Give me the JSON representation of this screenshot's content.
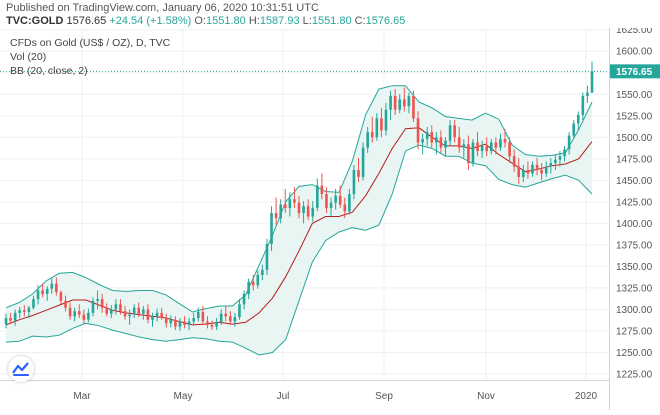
{
  "header": {
    "published": "Published on TradingView.com, January 06, 2020 10:31:51 UTC",
    "symbol": "TVC:GOLD",
    "last": "1576.65",
    "change": "+24.54 (+1.58%)",
    "o_label": "O:",
    "o": "1551.80",
    "h_label": "H:",
    "h": "1587.93",
    "l_label": "L:",
    "l": "1551.80",
    "c_label": "C:",
    "c": "1576.65"
  },
  "legend": {
    "title": "CFDs on Gold (US$ / OZ), D, TVC",
    "vol": "Vol (20)",
    "bb": "BB (20, close, 2)"
  },
  "price_badge": "1576.65",
  "colors": {
    "up": "#26a69a",
    "down": "#ef5350",
    "band": "#26a69a",
    "band_fill": "#e8f5f2",
    "basis": "#b71c1c",
    "grid": "#eef0f3"
  },
  "chart_data": {
    "type": "candlestick",
    "x_ticks": [
      "Mar",
      "May",
      "Jul",
      "Sep",
      "Nov",
      "2020"
    ],
    "y_ticks": [
      1225,
      1250,
      1275,
      1300,
      1325,
      1350,
      1375,
      1400,
      1425,
      1450,
      1475,
      1500,
      1525,
      1550,
      1575,
      1600,
      1625
    ],
    "y_range": [
      1218,
      1627
    ],
    "last_price": 1576.65,
    "basis": [
      1282,
      1288,
      1293,
      1299,
      1305,
      1311,
      1311,
      1305,
      1299,
      1296,
      1294,
      1292,
      1290,
      1286,
      1282,
      1283,
      1285,
      1283,
      1285,
      1296,
      1313,
      1338,
      1368,
      1400,
      1408,
      1408,
      1413,
      1432,
      1458,
      1487,
      1510,
      1511,
      1500,
      1490,
      1490,
      1487,
      1492,
      1480,
      1470,
      1460,
      1463,
      1467,
      1469,
      1475,
      1495
    ],
    "upper_band": [
      1302,
      1308,
      1318,
      1333,
      1342,
      1343,
      1337,
      1329,
      1322,
      1321,
      1322,
      1322,
      1317,
      1307,
      1297,
      1301,
      1304,
      1304,
      1317,
      1351,
      1386,
      1425,
      1443,
      1445,
      1437,
      1436,
      1472,
      1526,
      1556,
      1560,
      1560,
      1541,
      1534,
      1524,
      1522,
      1520,
      1528,
      1521,
      1491,
      1480,
      1478,
      1479,
      1482,
      1509,
      1541
    ],
    "lower_band": [
      1262,
      1263,
      1269,
      1268,
      1270,
      1278,
      1284,
      1281,
      1276,
      1272,
      1268,
      1265,
      1263,
      1265,
      1267,
      1266,
      1263,
      1262,
      1255,
      1247,
      1250,
      1265,
      1310,
      1355,
      1380,
      1390,
      1395,
      1392,
      1398,
      1434,
      1484,
      1491,
      1487,
      1478,
      1478,
      1470,
      1467,
      1451,
      1445,
      1442,
      1447,
      1452,
      1456,
      1450,
      1434
    ],
    "candles": [
      [
        1283,
        1295,
        1278,
        1290
      ],
      [
        1290,
        1296,
        1284,
        1287
      ],
      [
        1287,
        1300,
        1281,
        1296
      ],
      [
        1296,
        1303,
        1290,
        1299
      ],
      [
        1299,
        1305,
        1292,
        1297
      ],
      [
        1297,
        1304,
        1290,
        1302
      ],
      [
        1302,
        1316,
        1300,
        1312
      ],
      [
        1312,
        1328,
        1306,
        1322
      ],
      [
        1322,
        1330,
        1314,
        1318
      ],
      [
        1318,
        1327,
        1310,
        1324
      ],
      [
        1324,
        1336,
        1318,
        1330
      ],
      [
        1330,
        1337,
        1316,
        1320
      ],
      [
        1320,
        1322,
        1306,
        1310
      ],
      [
        1310,
        1316,
        1298,
        1302
      ],
      [
        1302,
        1308,
        1288,
        1292
      ],
      [
        1292,
        1302,
        1286,
        1298
      ],
      [
        1298,
        1306,
        1290,
        1294
      ],
      [
        1294,
        1300,
        1283,
        1288
      ],
      [
        1288,
        1301,
        1285,
        1296
      ],
      [
        1296,
        1314,
        1292,
        1310
      ],
      [
        1310,
        1322,
        1300,
        1312
      ],
      [
        1312,
        1318,
        1296,
        1302
      ],
      [
        1302,
        1307,
        1292,
        1295
      ],
      [
        1295,
        1305,
        1290,
        1300
      ],
      [
        1300,
        1312,
        1294,
        1306
      ],
      [
        1306,
        1312,
        1294,
        1298
      ],
      [
        1298,
        1304,
        1288,
        1292
      ],
      [
        1292,
        1300,
        1282,
        1294
      ],
      [
        1294,
        1306,
        1290,
        1302
      ],
      [
        1302,
        1308,
        1291,
        1295
      ],
      [
        1295,
        1304,
        1288,
        1300
      ],
      [
        1300,
        1306,
        1284,
        1288
      ],
      [
        1288,
        1296,
        1280,
        1292
      ],
      [
        1292,
        1301,
        1286,
        1296
      ],
      [
        1296,
        1302,
        1288,
        1290
      ],
      [
        1290,
        1295,
        1279,
        1284
      ],
      [
        1284,
        1293,
        1279,
        1288
      ],
      [
        1288,
        1292,
        1276,
        1280
      ],
      [
        1280,
        1290,
        1275,
        1286
      ],
      [
        1286,
        1292,
        1278,
        1282
      ],
      [
        1282,
        1290,
        1276,
        1286
      ],
      [
        1286,
        1296,
        1282,
        1290
      ],
      [
        1290,
        1302,
        1286,
        1297
      ],
      [
        1297,
        1304,
        1282,
        1286
      ],
      [
        1286,
        1292,
        1278,
        1282
      ],
      [
        1282,
        1287,
        1276,
        1280
      ],
      [
        1280,
        1290,
        1276,
        1285
      ],
      [
        1285,
        1300,
        1282,
        1295
      ],
      [
        1295,
        1304,
        1286,
        1292
      ],
      [
        1292,
        1298,
        1282,
        1286
      ],
      [
        1286,
        1296,
        1280,
        1291
      ],
      [
        1291,
        1312,
        1288,
        1306
      ],
      [
        1306,
        1322,
        1300,
        1318
      ],
      [
        1318,
        1336,
        1312,
        1332
      ],
      [
        1332,
        1340,
        1322,
        1328
      ],
      [
        1328,
        1345,
        1324,
        1340
      ],
      [
        1340,
        1352,
        1334,
        1346
      ],
      [
        1346,
        1382,
        1340,
        1376
      ],
      [
        1376,
        1420,
        1368,
        1412
      ],
      [
        1412,
        1430,
        1398,
        1406
      ],
      [
        1406,
        1428,
        1400,
        1422
      ],
      [
        1422,
        1440,
        1412,
        1418
      ],
      [
        1418,
        1436,
        1408,
        1428
      ],
      [
        1428,
        1442,
        1418,
        1424
      ],
      [
        1424,
        1432,
        1406,
        1412
      ],
      [
        1412,
        1426,
        1400,
        1420
      ],
      [
        1420,
        1428,
        1404,
        1408
      ],
      [
        1408,
        1426,
        1402,
        1418
      ],
      [
        1418,
        1452,
        1414,
        1444
      ],
      [
        1444,
        1458,
        1428,
        1434
      ],
      [
        1434,
        1442,
        1412,
        1418
      ],
      [
        1418,
        1430,
        1408,
        1424
      ],
      [
        1424,
        1440,
        1416,
        1432
      ],
      [
        1432,
        1444,
        1418,
        1422
      ],
      [
        1422,
        1430,
        1406,
        1414
      ],
      [
        1414,
        1440,
        1410,
        1434
      ],
      [
        1434,
        1468,
        1428,
        1462
      ],
      [
        1462,
        1476,
        1448,
        1454
      ],
      [
        1454,
        1494,
        1450,
        1488
      ],
      [
        1488,
        1512,
        1482,
        1506
      ],
      [
        1506,
        1524,
        1494,
        1500
      ],
      [
        1500,
        1528,
        1496,
        1522
      ],
      [
        1522,
        1534,
        1500,
        1508
      ],
      [
        1508,
        1540,
        1502,
        1532
      ],
      [
        1532,
        1554,
        1520,
        1548
      ],
      [
        1548,
        1556,
        1526,
        1532
      ],
      [
        1532,
        1550,
        1528,
        1544
      ],
      [
        1544,
        1558,
        1530,
        1536
      ],
      [
        1536,
        1552,
        1528,
        1548
      ],
      [
        1548,
        1554,
        1518,
        1522
      ],
      [
        1522,
        1530,
        1486,
        1494
      ],
      [
        1494,
        1504,
        1480,
        1498
      ],
      [
        1498,
        1512,
        1490,
        1506
      ],
      [
        1506,
        1514,
        1488,
        1494
      ],
      [
        1494,
        1506,
        1480,
        1500
      ],
      [
        1500,
        1508,
        1482,
        1488
      ],
      [
        1488,
        1500,
        1478,
        1496
      ],
      [
        1496,
        1520,
        1490,
        1514
      ],
      [
        1514,
        1520,
        1494,
        1500
      ],
      [
        1500,
        1512,
        1482,
        1488
      ],
      [
        1488,
        1498,
        1476,
        1492
      ],
      [
        1492,
        1502,
        1462,
        1470
      ],
      [
        1470,
        1498,
        1466,
        1494
      ],
      [
        1494,
        1506,
        1478,
        1484
      ],
      [
        1484,
        1496,
        1476,
        1490
      ],
      [
        1490,
        1500,
        1478,
        1484
      ],
      [
        1484,
        1498,
        1480,
        1494
      ],
      [
        1494,
        1500,
        1480,
        1488
      ],
      [
        1488,
        1504,
        1484,
        1498
      ],
      [
        1498,
        1510,
        1488,
        1494
      ],
      [
        1494,
        1500,
        1470,
        1478
      ],
      [
        1478,
        1486,
        1460,
        1466
      ],
      [
        1466,
        1476,
        1446,
        1454
      ],
      [
        1454,
        1468,
        1448,
        1462
      ],
      [
        1462,
        1472,
        1452,
        1458
      ],
      [
        1458,
        1472,
        1454,
        1468
      ],
      [
        1468,
        1476,
        1456,
        1462
      ],
      [
        1462,
        1470,
        1450,
        1458
      ],
      [
        1458,
        1472,
        1454,
        1466
      ],
      [
        1466,
        1476,
        1458,
        1470
      ],
      [
        1470,
        1480,
        1462,
        1474
      ],
      [
        1474,
        1484,
        1466,
        1478
      ],
      [
        1478,
        1490,
        1472,
        1486
      ],
      [
        1486,
        1506,
        1480,
        1502
      ],
      [
        1502,
        1520,
        1498,
        1516
      ],
      [
        1516,
        1530,
        1508,
        1526
      ],
      [
        1526,
        1552,
        1520,
        1548
      ],
      [
        1548,
        1560,
        1540,
        1552
      ],
      [
        1551.8,
        1587.93,
        1551.8,
        1576.65
      ]
    ]
  }
}
